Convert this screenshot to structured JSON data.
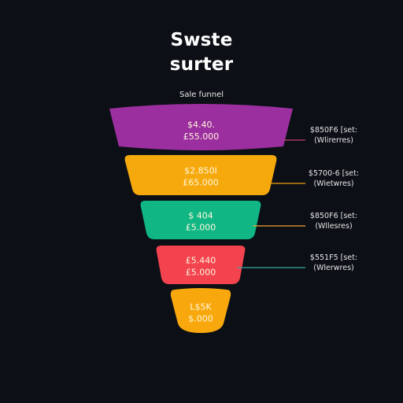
{
  "chart_data": {
    "type": "funnel",
    "title_lines": [
      "Swste",
      "surter"
    ],
    "subtitle": "Sale funnel",
    "stages": [
      {
        "value_lines": [
          "$4.40.",
          "£55.000"
        ],
        "annotation_lines": [
          "$850F6 [set:",
          "(Wlirerres)"
        ],
        "color": "#9c2f9f",
        "line_color": "#c33d6a"
      },
      {
        "value_lines": [
          "$2.850I",
          "£65.000"
        ],
        "annotation_lines": [
          "$5700-6 [set:",
          "(Wietwres)"
        ],
        "color": "#f6a90d",
        "line_color": "#f0a010"
      },
      {
        "value_lines": [
          "$ 404",
          "£5.000"
        ],
        "annotation_lines": [
          "$850F6 [set:",
          "(Wllesres)"
        ],
        "color": "#10b784",
        "line_color": "#f2a32a"
      },
      {
        "value_lines": [
          "£5.440",
          "£5.000"
        ],
        "annotation_lines": [
          "$551F5 [set:",
          "(Wlerwres)"
        ],
        "color": "#f2434f",
        "line_color": "#3aa7a4"
      },
      {
        "value_lines": [
          "L$5K",
          "$.000"
        ],
        "annotation_lines": [],
        "color": "#f8a80c",
        "line_color": ""
      }
    ]
  }
}
